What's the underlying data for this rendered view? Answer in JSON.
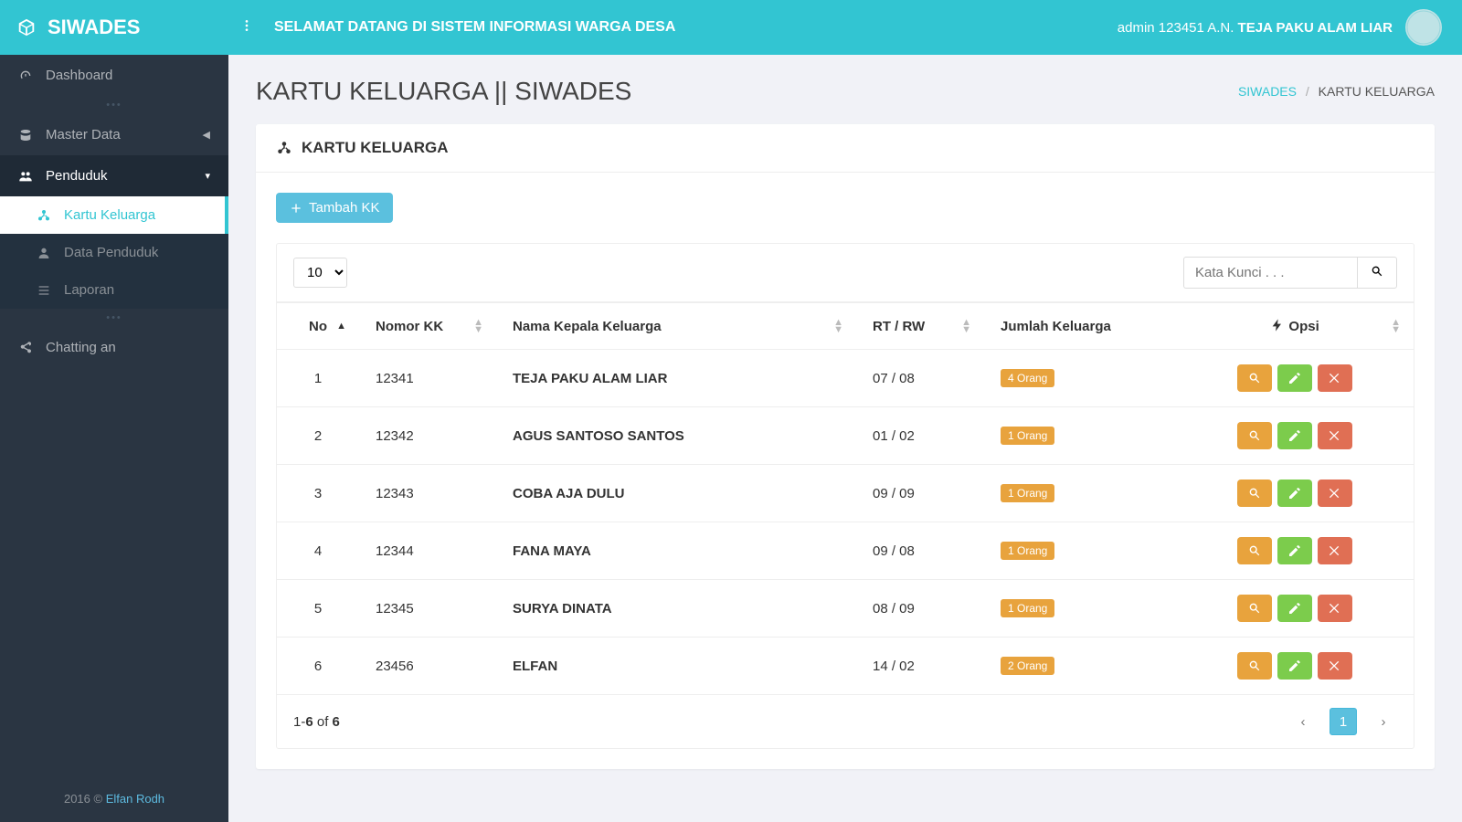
{
  "header": {
    "logo": "SIWADES",
    "welcome": "SELAMAT DATANG DI SISTEM INFORMASI WARGA DESA",
    "user_prefix": "admin 123451 A.N. ",
    "user_name": "TEJA PAKU ALAM LIAR"
  },
  "sidebar": {
    "dashboard": "Dashboard",
    "master_data": "Master Data",
    "penduduk": "Penduduk",
    "sub": {
      "kk": "Kartu Keluarga",
      "dp": "Data Penduduk",
      "laporan": "Laporan"
    },
    "chatting": "Chatting an",
    "footer_year": "2016 © ",
    "footer_author": "Elfan Rodh"
  },
  "page": {
    "title": "KARTU KELUARGA || SIWADES",
    "bc_root": "SIWADES",
    "bc_current": "KARTU KELUARGA"
  },
  "panel": {
    "title": "KARTU KELUARGA",
    "add_btn": "Tambah KK",
    "page_len": "10",
    "search_placeholder": "Kata Kunci . . .",
    "columns": {
      "no": "No",
      "nomor": "Nomor KK",
      "nama": "Nama Kepala Keluarga",
      "rtrw": "RT / RW",
      "jumlah": "Jumlah Keluarga",
      "opsi": "Opsi"
    },
    "rows": [
      {
        "no": "1",
        "nomor": "12341",
        "nama": "TEJA PAKU ALAM LIAR",
        "rtrw": "07 / 08",
        "jumlah": "4 Orang"
      },
      {
        "no": "2",
        "nomor": "12342",
        "nama": "AGUS SANTOSO SANTOS",
        "rtrw": "01 / 02",
        "jumlah": "1 Orang"
      },
      {
        "no": "3",
        "nomor": "12343",
        "nama": "COBA AJA DULU",
        "rtrw": "09 / 09",
        "jumlah": "1 Orang"
      },
      {
        "no": "4",
        "nomor": "12344",
        "nama": "FANA MAYA",
        "rtrw": "09 / 08",
        "jumlah": "1 Orang"
      },
      {
        "no": "5",
        "nomor": "12345",
        "nama": "SURYA DINATA",
        "rtrw": "08 / 09",
        "jumlah": "1 Orang"
      },
      {
        "no": "6",
        "nomor": "23456",
        "nama": "ELFAN",
        "rtrw": "14 / 02",
        "jumlah": "2 Orang"
      }
    ],
    "info_prefix": "1-",
    "info_mid": "6",
    "info_of": " of ",
    "info_total": "6",
    "page_number": "1"
  },
  "colors": {
    "primary": "#32c5d2",
    "info": "#5bc0de",
    "warning": "#e8a33d",
    "success": "#7ccc4c",
    "danger": "#e06f54"
  }
}
